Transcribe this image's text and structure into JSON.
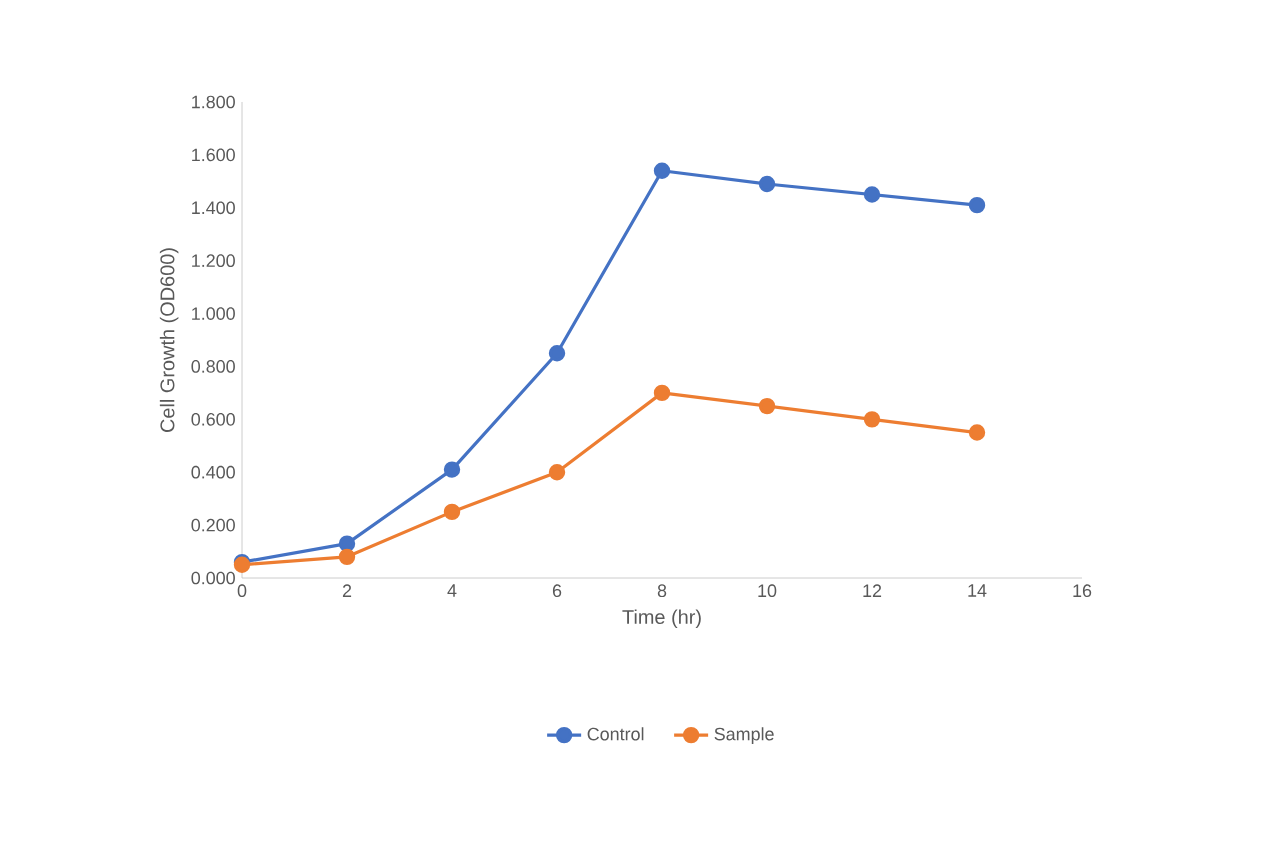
{
  "chart_data": {
    "type": "line",
    "xlabel": "Time (hr)",
    "ylabel": "Cell Growth (OD600)",
    "x": [
      0,
      2,
      4,
      6,
      8,
      10,
      12,
      14
    ],
    "series": [
      {
        "name": "Control",
        "color": "#4472c4",
        "values": [
          0.06,
          0.13,
          0.41,
          0.85,
          1.54,
          1.49,
          1.45,
          1.41
        ]
      },
      {
        "name": "Sample",
        "color": "#ed7d31",
        "values": [
          0.05,
          0.08,
          0.25,
          0.4,
          0.7,
          0.65,
          0.6,
          0.55
        ]
      }
    ],
    "xlim": [
      0,
      16
    ],
    "xticks": [
      0,
      2,
      4,
      6,
      8,
      10,
      12,
      14,
      16
    ],
    "ylim": [
      0,
      1.8
    ],
    "yticks": [
      {
        "value": 0,
        "label": "0.000"
      },
      {
        "value": 0.2,
        "label": "0.200"
      },
      {
        "value": 0.4,
        "label": "0.400"
      },
      {
        "value": 0.6,
        "label": "0.600"
      },
      {
        "value": 0.8,
        "label": "0.800"
      },
      {
        "value": 1.0,
        "label": "1.000"
      },
      {
        "value": 1.2,
        "label": "1.200"
      },
      {
        "value": 1.4,
        "label": "1.400"
      },
      {
        "value": 1.6,
        "label": "1.600"
      },
      {
        "value": 1.8,
        "label": "1.800"
      }
    ],
    "legend": "bottom",
    "marker": "circle",
    "line_style": "solid",
    "grid": false
  }
}
